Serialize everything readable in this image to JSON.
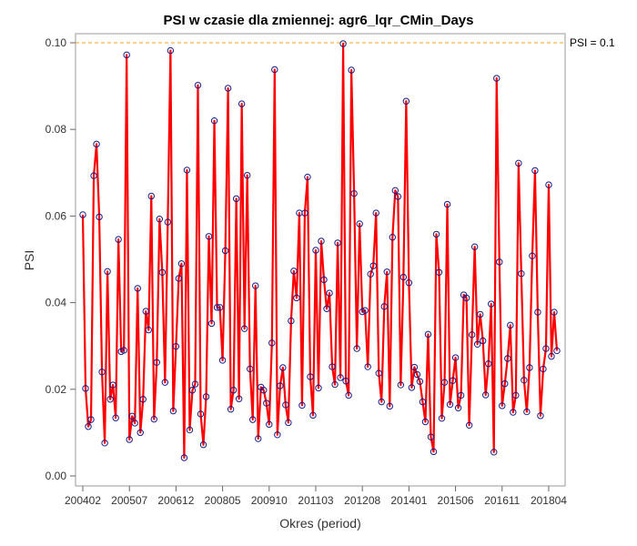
{
  "chart_data": {
    "type": "line",
    "title": "PSI w czasie dla zmiennej: agr6_lqr_CMin_Days",
    "xlabel": "Okres (period)",
    "ylabel": "PSI",
    "ylim": [
      0.0,
      0.1
    ],
    "yticks": [
      "0.00",
      "0.02",
      "0.04",
      "0.06",
      "0.08",
      "0.10"
    ],
    "ytick_values": [
      0.0,
      0.02,
      0.04,
      0.06,
      0.08,
      0.1
    ],
    "xticks": [
      "200402",
      "200507",
      "200612",
      "200805",
      "200910",
      "201103",
      "201208",
      "201401",
      "201506",
      "201611",
      "201804"
    ],
    "xtick_index": [
      0,
      17,
      34,
      51,
      68,
      85,
      102,
      119,
      136,
      153,
      170
    ],
    "reference_line": {
      "value": 0.1,
      "label": "PSI = 0.1",
      "color": "#FFB347"
    },
    "line_color": "#FF0000",
    "marker_color": "#1a1a8c",
    "grid": false,
    "series": [
      {
        "values": [
          0.0603,
          0.0202,
          0.0114,
          0.013,
          0.0693,
          0.0766,
          0.0598,
          0.024,
          0.0076,
          0.0472,
          0.0177,
          0.021,
          0.0134,
          0.0546,
          0.0287,
          0.029,
          0.0972,
          0.0084,
          0.0138,
          0.0122,
          0.0433,
          0.01,
          0.0177,
          0.038,
          0.0337,
          0.0646,
          0.0131,
          0.0262,
          0.0593,
          0.047,
          0.0216,
          0.0586,
          0.0982,
          0.015,
          0.0299,
          0.0456,
          0.049,
          0.0042,
          0.0706,
          0.0106,
          0.0198,
          0.0212,
          0.0902,
          0.0143,
          0.0072,
          0.0183,
          0.0553,
          0.0352,
          0.082,
          0.0389,
          0.0389,
          0.0267,
          0.052,
          0.0895,
          0.0154,
          0.0198,
          0.064,
          0.0178,
          0.0859,
          0.034,
          0.0694,
          0.0247,
          0.013,
          0.0439,
          0.0086,
          0.0205,
          0.0198,
          0.0168,
          0.0119,
          0.0307,
          0.0938,
          0.0095,
          0.0208,
          0.025,
          0.0164,
          0.0123,
          0.0358,
          0.0473,
          0.0411,
          0.0607,
          0.0163,
          0.0607,
          0.069,
          0.0229,
          0.014,
          0.0521,
          0.0203,
          0.0542,
          0.0453,
          0.0386,
          0.0422,
          0.0252,
          0.0211,
          0.0538,
          0.0227,
          0.0998,
          0.0219,
          0.0186,
          0.0937,
          0.0652,
          0.0294,
          0.0582,
          0.0379,
          0.0382,
          0.0252,
          0.0466,
          0.0485,
          0.0607,
          0.0237,
          0.0171,
          0.0391,
          0.0471,
          0.0161,
          0.0551,
          0.0659,
          0.0645,
          0.021,
          0.0459,
          0.0865,
          0.0446,
          0.0204,
          0.0251,
          0.0234,
          0.0218,
          0.0171,
          0.0125,
          0.0327,
          0.009,
          0.0056,
          0.0558,
          0.047,
          0.0133,
          0.0216,
          0.0627,
          0.0165,
          0.022,
          0.0273,
          0.0157,
          0.0186,
          0.0418,
          0.0411,
          0.0117,
          0.0326,
          0.0529,
          0.0304,
          0.0373,
          0.0312,
          0.0187,
          0.0259,
          0.0397,
          0.0055,
          0.0918,
          0.0494,
          0.0162,
          0.0213,
          0.0271,
          0.0348,
          0.0147,
          0.0186,
          0.0722,
          0.0467,
          0.0221,
          0.0148,
          0.025,
          0.0508,
          0.0705,
          0.0378,
          0.0139,
          0.0247,
          0.0294,
          0.0672,
          0.0276,
          0.0378,
          0.0289
        ]
      }
    ]
  }
}
